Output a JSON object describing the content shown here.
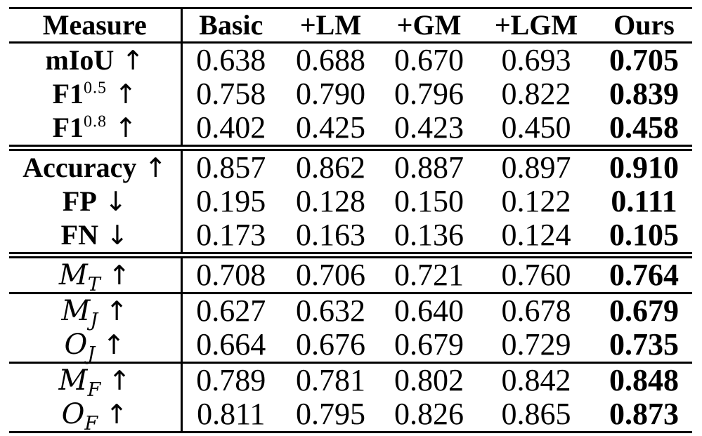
{
  "colors": {
    "background": "#ffffff",
    "text": "#000000",
    "rule": "#000000"
  },
  "table": {
    "header": {
      "measure": "Measure",
      "columns": [
        "Basic",
        "+LM",
        "+GM",
        "+LGM",
        "Ours"
      ]
    },
    "bold_column": "Ours",
    "sections": [
      {
        "separator_after": "double",
        "rows": [
          {
            "base": "mIoU",
            "sup": "",
            "sub": "",
            "arrow": "↑",
            "label_style": "bold",
            "values": [
              "0.638",
              "0.688",
              "0.670",
              "0.693",
              "0.705"
            ]
          },
          {
            "base": "F1",
            "sup": "0.5",
            "sub": "",
            "arrow": "↑",
            "label_style": "bold",
            "values": [
              "0.758",
              "0.790",
              "0.796",
              "0.822",
              "0.839"
            ]
          },
          {
            "base": "F1",
            "sup": "0.8",
            "sub": "",
            "arrow": "↑",
            "label_style": "bold",
            "values": [
              "0.402",
              "0.425",
              "0.423",
              "0.450",
              "0.458"
            ]
          }
        ]
      },
      {
        "separator_after": "double",
        "rows": [
          {
            "base": "Accuracy",
            "sup": "",
            "sub": "",
            "arrow": "↑",
            "label_style": "bold",
            "values": [
              "0.857",
              "0.862",
              "0.887",
              "0.897",
              "0.910"
            ]
          },
          {
            "base": "FP",
            "sup": "",
            "sub": "",
            "arrow": "↓",
            "label_style": "bold",
            "values": [
              "0.195",
              "0.128",
              "0.150",
              "0.122",
              "0.111"
            ]
          },
          {
            "base": "FN",
            "sup": "",
            "sub": "",
            "arrow": "↓",
            "label_style": "bold",
            "values": [
              "0.173",
              "0.163",
              "0.136",
              "0.124",
              "0.105"
            ]
          }
        ]
      },
      {
        "separator_after": "single",
        "rows": [
          {
            "base": "M",
            "sup": "",
            "sub": "T",
            "arrow": "↑",
            "label_style": "script",
            "values": [
              "0.708",
              "0.706",
              "0.721",
              "0.760",
              "0.764"
            ]
          }
        ]
      },
      {
        "separator_after": "single",
        "rows": [
          {
            "base": "M",
            "sup": "",
            "sub": "J",
            "arrow": "↑",
            "label_style": "script",
            "values": [
              "0.627",
              "0.632",
              "0.640",
              "0.678",
              "0.679"
            ]
          },
          {
            "base": "O",
            "sup": "",
            "sub": "J",
            "arrow": "↑",
            "label_style": "script",
            "values": [
              "0.664",
              "0.676",
              "0.679",
              "0.729",
              "0.735"
            ]
          }
        ]
      },
      {
        "separator_after": "none",
        "rows": [
          {
            "base": "M",
            "sup": "",
            "sub": "F",
            "arrow": "↑",
            "label_style": "script",
            "values": [
              "0.789",
              "0.781",
              "0.802",
              "0.842",
              "0.848"
            ]
          },
          {
            "base": "O",
            "sup": "",
            "sub": "F",
            "arrow": "↑",
            "label_style": "script",
            "values": [
              "0.811",
              "0.795",
              "0.826",
              "0.865",
              "0.873"
            ]
          }
        ]
      }
    ]
  }
}
